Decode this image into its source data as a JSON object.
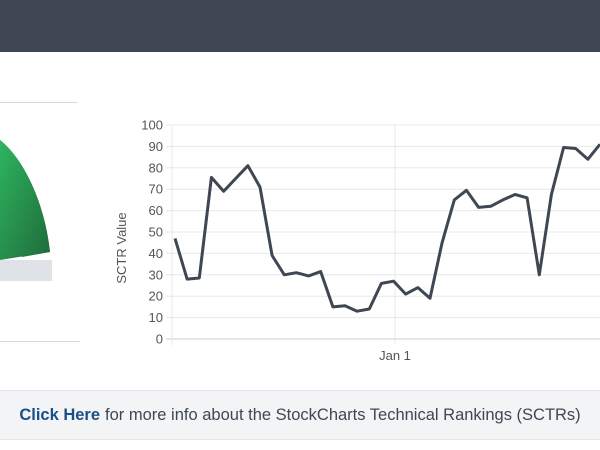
{
  "info": {
    "link_text": "Click Here",
    "rest_text": "for more info about the StockCharts Technical Rankings (SCTRs)"
  },
  "colors": {
    "topbar": "#3f4753",
    "line": "#3f4753",
    "gauge_dark": "#1f6b3a",
    "gauge_light": "#2eb55f",
    "gauge_track": "#dfe3e7",
    "link": "#1b4f8a"
  },
  "chart_data": {
    "type": "line",
    "ylabel": "SCTR Value",
    "ylim": [
      0,
      100
    ],
    "yticks": [
      0,
      10,
      20,
      30,
      40,
      50,
      60,
      70,
      80,
      90,
      100
    ],
    "xtick_labels": [
      "Jan 1"
    ],
    "grid": true,
    "series": [
      {
        "values": [
          47,
          28,
          28.5,
          75.5,
          69,
          75,
          81,
          71,
          39,
          30,
          31,
          29.5,
          31.5,
          15,
          15.5,
          13,
          14,
          26,
          27,
          21,
          24,
          19,
          45,
          65,
          69.5,
          61.5,
          62,
          65,
          67.5,
          66,
          30,
          67.5,
          89.5,
          89,
          84,
          91
        ]
      }
    ]
  }
}
